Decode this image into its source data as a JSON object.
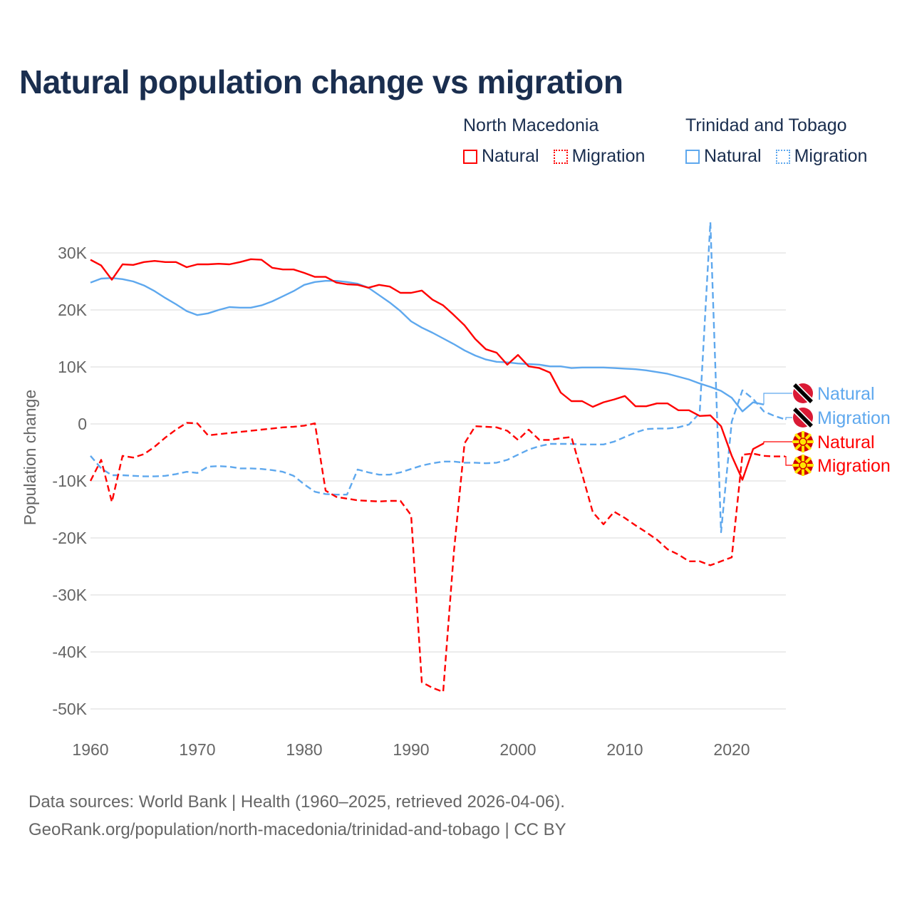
{
  "title": "Natural population change vs migration",
  "legend": {
    "groups": [
      {
        "country": "North Macedonia",
        "items": [
          "Natural",
          "Migration"
        ],
        "color": "#ff0000"
      },
      {
        "country": "Trinidad and Tobago",
        "items": [
          "Natural",
          "Migration"
        ],
        "color": "#5ea8ee"
      }
    ]
  },
  "footer": {
    "line1": "Data sources: World Bank | Health (1960–2025, retrieved 2026-04-06).",
    "line2": "GeoRank.org/population/north-macedonia/trinidad-and-tobago | CC BY"
  },
  "chart_data": {
    "type": "line",
    "title": "Natural population change vs migration",
    "xlabel": "",
    "ylabel": "Population change",
    "xlim": [
      1960,
      2025
    ],
    "ylim": [
      -50000,
      35000
    ],
    "x_ticks": [
      1960,
      1970,
      1980,
      1990,
      2000,
      2010,
      2020
    ],
    "x_tick_labels": [
      "1960",
      "1970",
      "1980",
      "1990",
      "2000",
      "2010",
      "2020"
    ],
    "y_ticks": [
      30000,
      20000,
      10000,
      0,
      -10000,
      -20000,
      -30000,
      -40000,
      -50000
    ],
    "y_tick_labels": [
      "30K",
      "20K",
      "10K",
      "0",
      "-10K",
      "-20K",
      "-30K",
      "-40K",
      "-50K"
    ],
    "grid": true,
    "series": [
      {
        "name": "Natural",
        "country": "Trinidad and Tobago",
        "color": "#5ea8ee",
        "dash": false,
        "start": 1960,
        "values": [
          24800,
          25500,
          25600,
          25400,
          25000,
          24300,
          23300,
          22100,
          21000,
          19800,
          19100,
          19400,
          20000,
          20500,
          20400,
          20400,
          20800,
          21500,
          22400,
          23300,
          24400,
          24900,
          25100,
          25100,
          24900,
          24600,
          23900,
          22600,
          21300,
          19800,
          18000,
          16900,
          16000,
          15000,
          14000,
          12900,
          12000,
          11300,
          10900,
          10800,
          10600,
          10500,
          10400,
          10100,
          10100,
          9800,
          9900,
          9900,
          9900,
          9800,
          9700,
          9600,
          9400,
          9100,
          8800,
          8300,
          7800,
          7100,
          6500,
          5800,
          4600,
          2200,
          3800,
          3400
        ]
      },
      {
        "name": "Migration",
        "country": "Trinidad and Tobago",
        "color": "#5ea8ee",
        "dash": true,
        "start": 1960,
        "values": [
          -5600,
          -7800,
          -9000,
          -9000,
          -9100,
          -9200,
          -9200,
          -9100,
          -8800,
          -8400,
          -8600,
          -7500,
          -7400,
          -7500,
          -7800,
          -7800,
          -7900,
          -8100,
          -8400,
          -9100,
          -10600,
          -11900,
          -12300,
          -12400,
          -12400,
          -8000,
          -8500,
          -8900,
          -8900,
          -8500,
          -7900,
          -7300,
          -6900,
          -6600,
          -6600,
          -6800,
          -6800,
          -6900,
          -6800,
          -6300,
          -5400,
          -4500,
          -3900,
          -3500,
          -3500,
          -3500,
          -3600,
          -3600,
          -3600,
          -3100,
          -2300,
          -1500,
          -900,
          -800,
          -800,
          -600,
          -100,
          1900,
          35400,
          -19000,
          400,
          5900,
          4400,
          2200,
          1400,
          800
        ]
      },
      {
        "name": "Natural",
        "country": "North Macedonia",
        "color": "#ff0000",
        "dash": false,
        "start": 1960,
        "values": [
          28800,
          27800,
          25300,
          28000,
          27900,
          28400,
          28600,
          28400,
          28400,
          27500,
          28000,
          28000,
          28100,
          28000,
          28400,
          28900,
          28800,
          27400,
          27100,
          27100,
          26500,
          25800,
          25800,
          24800,
          24500,
          24400,
          23900,
          24400,
          24100,
          23000,
          23000,
          23400,
          21800,
          20800,
          19100,
          17300,
          14900,
          13100,
          12500,
          10400,
          12100,
          10100,
          9800,
          9000,
          5500,
          4000,
          4000,
          3000,
          3800,
          4300,
          4900,
          3100,
          3100,
          3600,
          3600,
          2400,
          2400,
          1400,
          1500,
          -400,
          -5600,
          -9800,
          -4400,
          -3400
        ]
      },
      {
        "name": "Migration",
        "country": "North Macedonia",
        "color": "#ff0000",
        "dash": true,
        "start": 1960,
        "values": [
          -10000,
          -6300,
          -13700,
          -5600,
          -5900,
          -5300,
          -4000,
          -2400,
          -1000,
          200,
          100,
          -2000,
          -1800,
          -1600,
          -1400,
          -1200,
          -1000,
          -800,
          -600,
          -500,
          -300,
          100,
          -11700,
          -12800,
          -13100,
          -13400,
          -13500,
          -13600,
          -13500,
          -13500,
          -16000,
          -45300,
          -46300,
          -47000,
          -22500,
          -3400,
          -400,
          -500,
          -600,
          -1200,
          -2800,
          -1000,
          -2800,
          -2800,
          -2500,
          -2300,
          -8800,
          -15500,
          -17600,
          -15400,
          -16500,
          -17800,
          -19000,
          -20300,
          -22000,
          -22900,
          -24100,
          -24100,
          -24800,
          -24100,
          -23400,
          -5400,
          -5200,
          -5600,
          -5700,
          -5700
        ]
      }
    ],
    "end_labels": [
      "Natural",
      "Migration",
      "Natural",
      "Migration"
    ]
  }
}
